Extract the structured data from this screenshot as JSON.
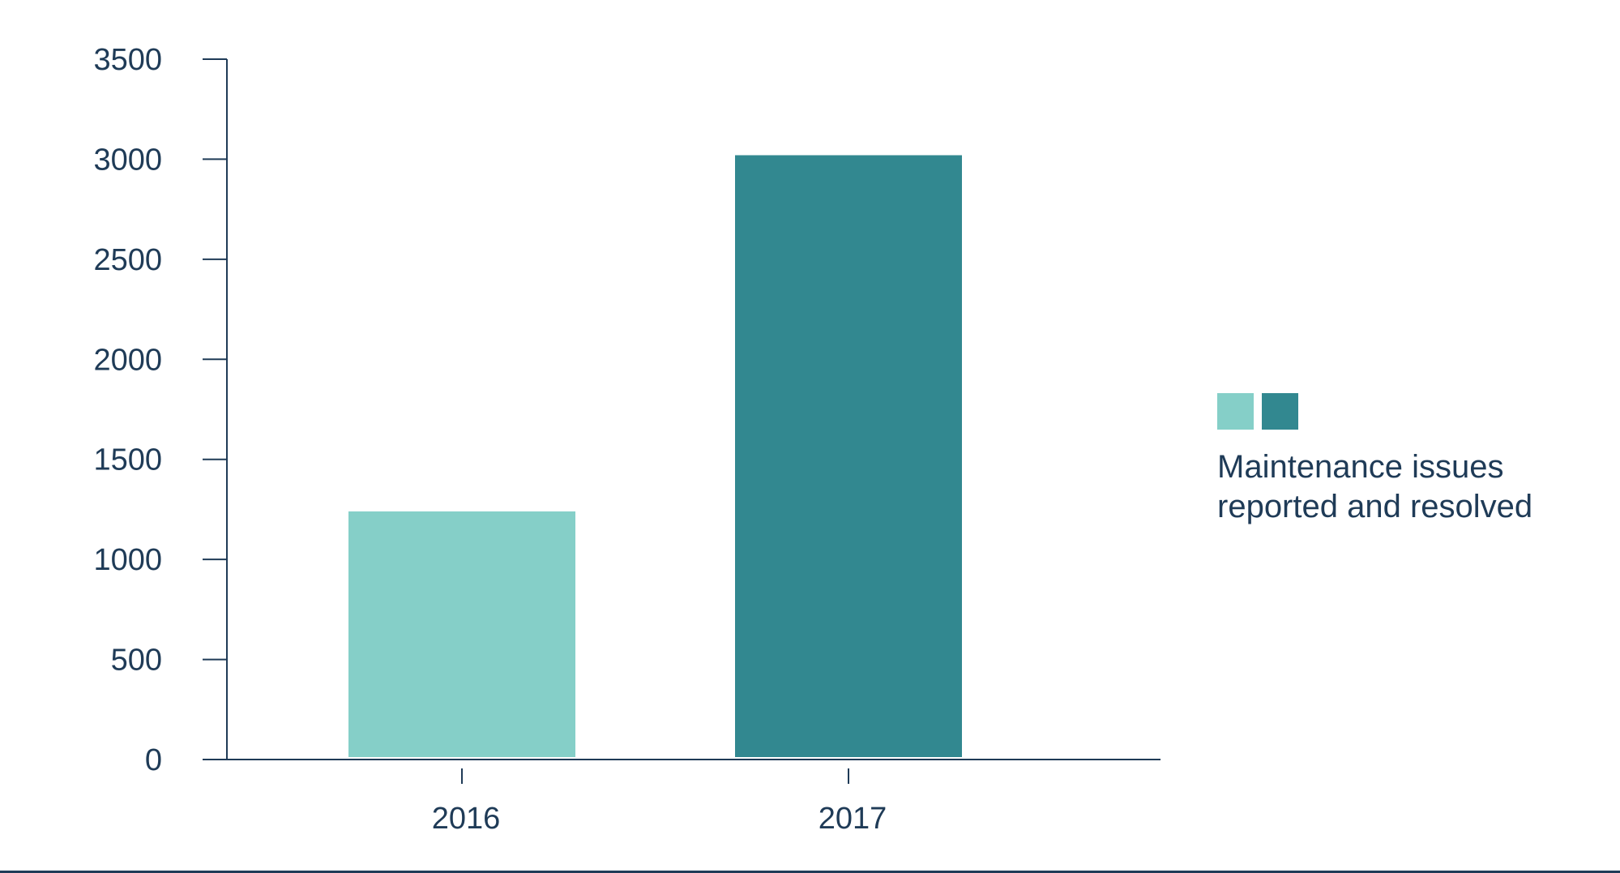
{
  "chart_data": {
    "type": "bar",
    "categories": [
      "2016",
      "2017"
    ],
    "values": [
      1240,
      3020
    ],
    "bar_colors": [
      "#85cfc8",
      "#328890"
    ],
    "ylim": [
      0,
      3500
    ],
    "yticks": [
      0,
      500,
      1000,
      1500,
      2000,
      2500,
      3000,
      3500
    ],
    "legend": {
      "placement": "right",
      "swatch_colors": [
        "#85cfc8",
        "#328890"
      ],
      "lines": [
        "Maintenance issues",
        "reported and resolved"
      ]
    },
    "grid": false,
    "axis_color": "#1f3b57"
  }
}
